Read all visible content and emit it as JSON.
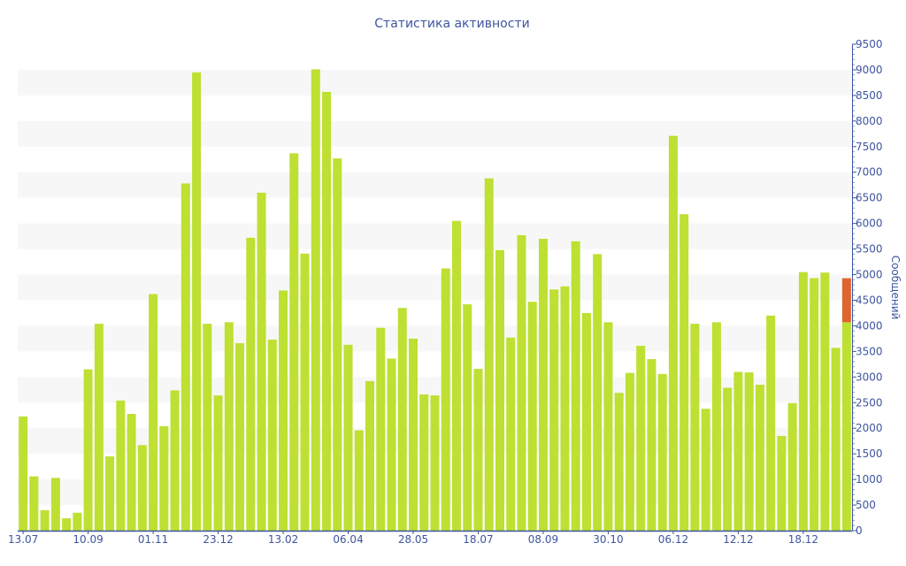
{
  "chart_data": {
    "type": "bar",
    "title": "Статистика активности",
    "xlabel": "",
    "ylabel": "Сообщений",
    "ylim": [
      0,
      9500
    ],
    "y_ticks": [
      0,
      500,
      1000,
      1500,
      2000,
      2500,
      3000,
      3500,
      4000,
      4500,
      5000,
      5500,
      6000,
      6500,
      7000,
      7500,
      8000,
      8500,
      9000,
      9500
    ],
    "y_axis_side": "right",
    "grid": "alternating horizontal bands",
    "x_tick_labels": [
      {
        "bar_index": 0,
        "label": "13.07"
      },
      {
        "bar_index": 6,
        "label": "10.09"
      },
      {
        "bar_index": 12,
        "label": "01.11"
      },
      {
        "bar_index": 18,
        "label": "23.12"
      },
      {
        "bar_index": 24,
        "label": "13.02"
      },
      {
        "bar_index": 30,
        "label": "06.04"
      },
      {
        "bar_index": 36,
        "label": "28.05"
      },
      {
        "bar_index": 42,
        "label": "18.07"
      },
      {
        "bar_index": 48,
        "label": "08.09"
      },
      {
        "bar_index": 54,
        "label": "30.10"
      },
      {
        "bar_index": 60,
        "label": "06.12"
      },
      {
        "bar_index": 66,
        "label": "12.12"
      },
      {
        "bar_index": 72,
        "label": "18.12"
      }
    ],
    "colors": {
      "bar": "#bde032",
      "highlight": "#e0642e",
      "axis": "#3e55a0",
      "band": "#f7f7f7"
    },
    "values": [
      2230,
      1060,
      400,
      1030,
      240,
      350,
      3150,
      4040,
      1450,
      2540,
      2280,
      1670,
      4620,
      2040,
      2740,
      6780,
      8950,
      4040,
      2640,
      4070,
      3660,
      5720,
      6600,
      3730,
      4690,
      7370,
      5410,
      9010,
      8570,
      7270,
      3630,
      1960,
      2920,
      3960,
      3360,
      4350,
      3750,
      2660,
      2640,
      5120,
      6050,
      4420,
      3160,
      6880,
      5480,
      3770,
      5770,
      4470,
      5700,
      4710,
      4770,
      5650,
      4250,
      5400,
      4070,
      2690,
      3080,
      3610,
      3350,
      3060,
      7710,
      6180,
      4040,
      2380,
      4070,
      2790,
      3100,
      3090,
      2850,
      4200,
      1850,
      2490,
      5050,
      4930,
      5040,
      3570,
      4070
    ],
    "last_bar_extra": 860
  }
}
